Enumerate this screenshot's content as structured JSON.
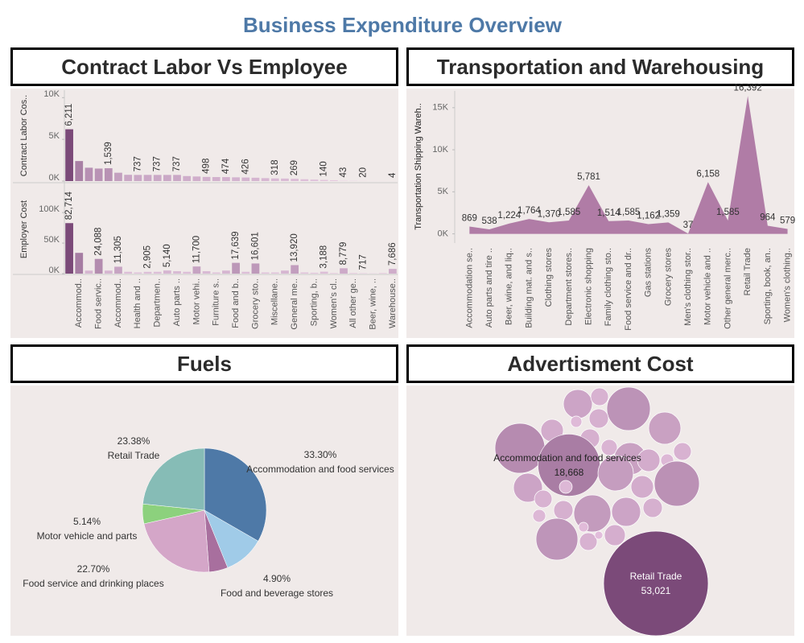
{
  "title": "Business Expenditure Overview",
  "chart_data": [
    {
      "type": "bar",
      "title": "Contract Labor Vs Employee",
      "color_range": [
        "#f4d9ee",
        "#7b4a79"
      ],
      "categories": [
        null,
        "Accommod..",
        null,
        "Food servic..",
        null,
        "Accommod..",
        null,
        "Health and ..",
        null,
        "Departmen..",
        null,
        "Auto parts ..",
        null,
        "Motor vehi..",
        null,
        "Furniture s..",
        null,
        "Food and b..",
        null,
        "Grocery sto..",
        null,
        "Miscellane..",
        null,
        "General me..",
        null,
        "Sporting, b..",
        null,
        "Women's cl..",
        null,
        "All other ge..",
        null,
        "Beer, wine, ..",
        null,
        "Warehouse.."
      ],
      "panels": [
        {
          "ylabel": "Contract Labor Cos..",
          "ylim": [
            0,
            10900
          ],
          "yticks": [
            {
              "value": 0,
              "label": "0K"
            },
            {
              "value": 5000,
              "label": "5K"
            },
            {
              "value": 10000,
              "label": "10K"
            }
          ],
          "values": [
            6211,
            2400,
            1600,
            1500,
            1539,
            1000,
            750,
            737,
            740,
            737,
            737,
            737,
            600,
            550,
            498,
            480,
            474,
            450,
            426,
            400,
            350,
            318,
            300,
            269,
            220,
            180,
            140,
            100,
            43,
            30,
            20,
            10,
            6,
            4
          ],
          "value_labels": [
            "6,211",
            null,
            null,
            null,
            "1,539",
            null,
            null,
            "737",
            null,
            "737",
            null,
            "737",
            null,
            null,
            "498",
            null,
            "474",
            null,
            "426",
            null,
            null,
            "318",
            null,
            "269",
            null,
            null,
            "140",
            null,
            "43",
            null,
            "20",
            null,
            null,
            "4"
          ]
        },
        {
          "ylabel": "Employer Cost",
          "ylim": [
            0,
            145000
          ],
          "yticks": [
            {
              "value": 0,
              "label": "0K"
            },
            {
              "value": 50000,
              "label": "50K"
            },
            {
              "value": 100000,
              "label": "100K"
            }
          ],
          "values": [
            82714,
            34000,
            5000,
            24088,
            5000,
            11305,
            3000,
            2000,
            2905,
            3000,
            5140,
            4000,
            3000,
            11700,
            4000,
            2000,
            5000,
            17639,
            3000,
            16601,
            2000,
            2000,
            5000,
            13920,
            2000,
            1500,
            3188,
            1000,
            8779,
            1000,
            717,
            500,
            1000,
            7686
          ],
          "value_labels": [
            "82,714",
            null,
            null,
            "24,088",
            null,
            "11,305",
            null,
            null,
            "2,905",
            null,
            "5,140",
            null,
            null,
            "11,700",
            null,
            null,
            null,
            "17,639",
            null,
            "16,601",
            null,
            null,
            null,
            "13,920",
            null,
            null,
            "3,188",
            null,
            "8,779",
            null,
            "717",
            null,
            null,
            "7,686"
          ]
        }
      ]
    },
    {
      "type": "area",
      "title": "Transportation and Warehousing",
      "ylabel": "Transportation Shipping Wareh..",
      "color": "#a8709f",
      "categories": [
        "Accommodation se..",
        "Auto parts and tire ..",
        "Beer, wine, and liq..",
        "Building mat. and s..",
        "Clothing stores",
        "Department stores..",
        "Electronic shopping",
        "Family clothing sto..",
        "Food service and dr..",
        "Gas stations",
        "Grocery stores",
        "Men's clothing stor..",
        "Motor vehicle and ..",
        "Other general merc..",
        "Retail Trade",
        "Sporting, book, an..",
        "Women's clothing.."
      ],
      "values": [
        869,
        538,
        1224,
        1764,
        1370,
        1585,
        5781,
        1514,
        1585,
        1162,
        1359,
        37,
        6158,
        1585,
        16392,
        964,
        579
      ],
      "value_labels": [
        "869",
        "538",
        "1,224",
        "1,764",
        "1,370",
        "1,585",
        "5,781",
        "1,514",
        "1,585",
        "1,162",
        "1,359",
        "37",
        "6,158",
        "1,585",
        "16,392",
        "964",
        "579"
      ],
      "ylim": [
        -900,
        16800
      ],
      "yticks": [
        {
          "value": 0,
          "label": "0K"
        },
        {
          "value": 5000,
          "label": "5K"
        },
        {
          "value": 10000,
          "label": "10K"
        },
        {
          "value": 15000,
          "label": "15K"
        }
      ]
    },
    {
      "type": "pie",
      "title": "Fuels",
      "categories": [
        "Accommodation and food services",
        null,
        "Food and beverage stores",
        "Food service and drinking places",
        "Motor vehicle and parts",
        "Retail Trade"
      ],
      "values": [
        33.3,
        10.58,
        4.9,
        22.7,
        5.14,
        23.38
      ],
      "value_labels": [
        "33.30%",
        null,
        "4.90%",
        "22.70%",
        "5.14%",
        "23.38%"
      ],
      "colors": [
        "#4e79a7",
        "#a0cbe8",
        "#a86f9e",
        "#d4a6c8",
        "#8cd17d",
        "#86bcb6"
      ]
    },
    {
      "type": "bubble",
      "title": "Advertisment Cost",
      "color_range": [
        "#ebc7e3",
        "#7b4a79"
      ],
      "categories": [
        null,
        null,
        null,
        null,
        null,
        null,
        null,
        null,
        null,
        "Accommodation and food services",
        null,
        null,
        null,
        null,
        null,
        null,
        null,
        null,
        null,
        null,
        null,
        null,
        null,
        null,
        null,
        null,
        null,
        null,
        null,
        null,
        null,
        "Retail Trade"
      ],
      "values": [
        4066,
        1518,
        9148,
        615,
        1807,
        12059,
        2459,
        1807,
        1255,
        18668,
        5019,
        5019,
        2459,
        1518,
        803,
        6073,
        2459,
        9838,
        4066,
        803,
        1518,
        1807,
        6638,
        4066,
        1807,
        803,
        8483,
        1518,
        314,
        2121,
        452,
        53021
      ],
      "value_labels": [
        null,
        null,
        null,
        null,
        null,
        null,
        null,
        null,
        null,
        "18,668",
        null,
        null,
        null,
        null,
        null,
        null,
        null,
        null,
        null,
        null,
        null,
        null,
        null,
        null,
        null,
        null,
        null,
        null,
        null,
        null,
        null,
        "53,021"
      ]
    }
  ]
}
